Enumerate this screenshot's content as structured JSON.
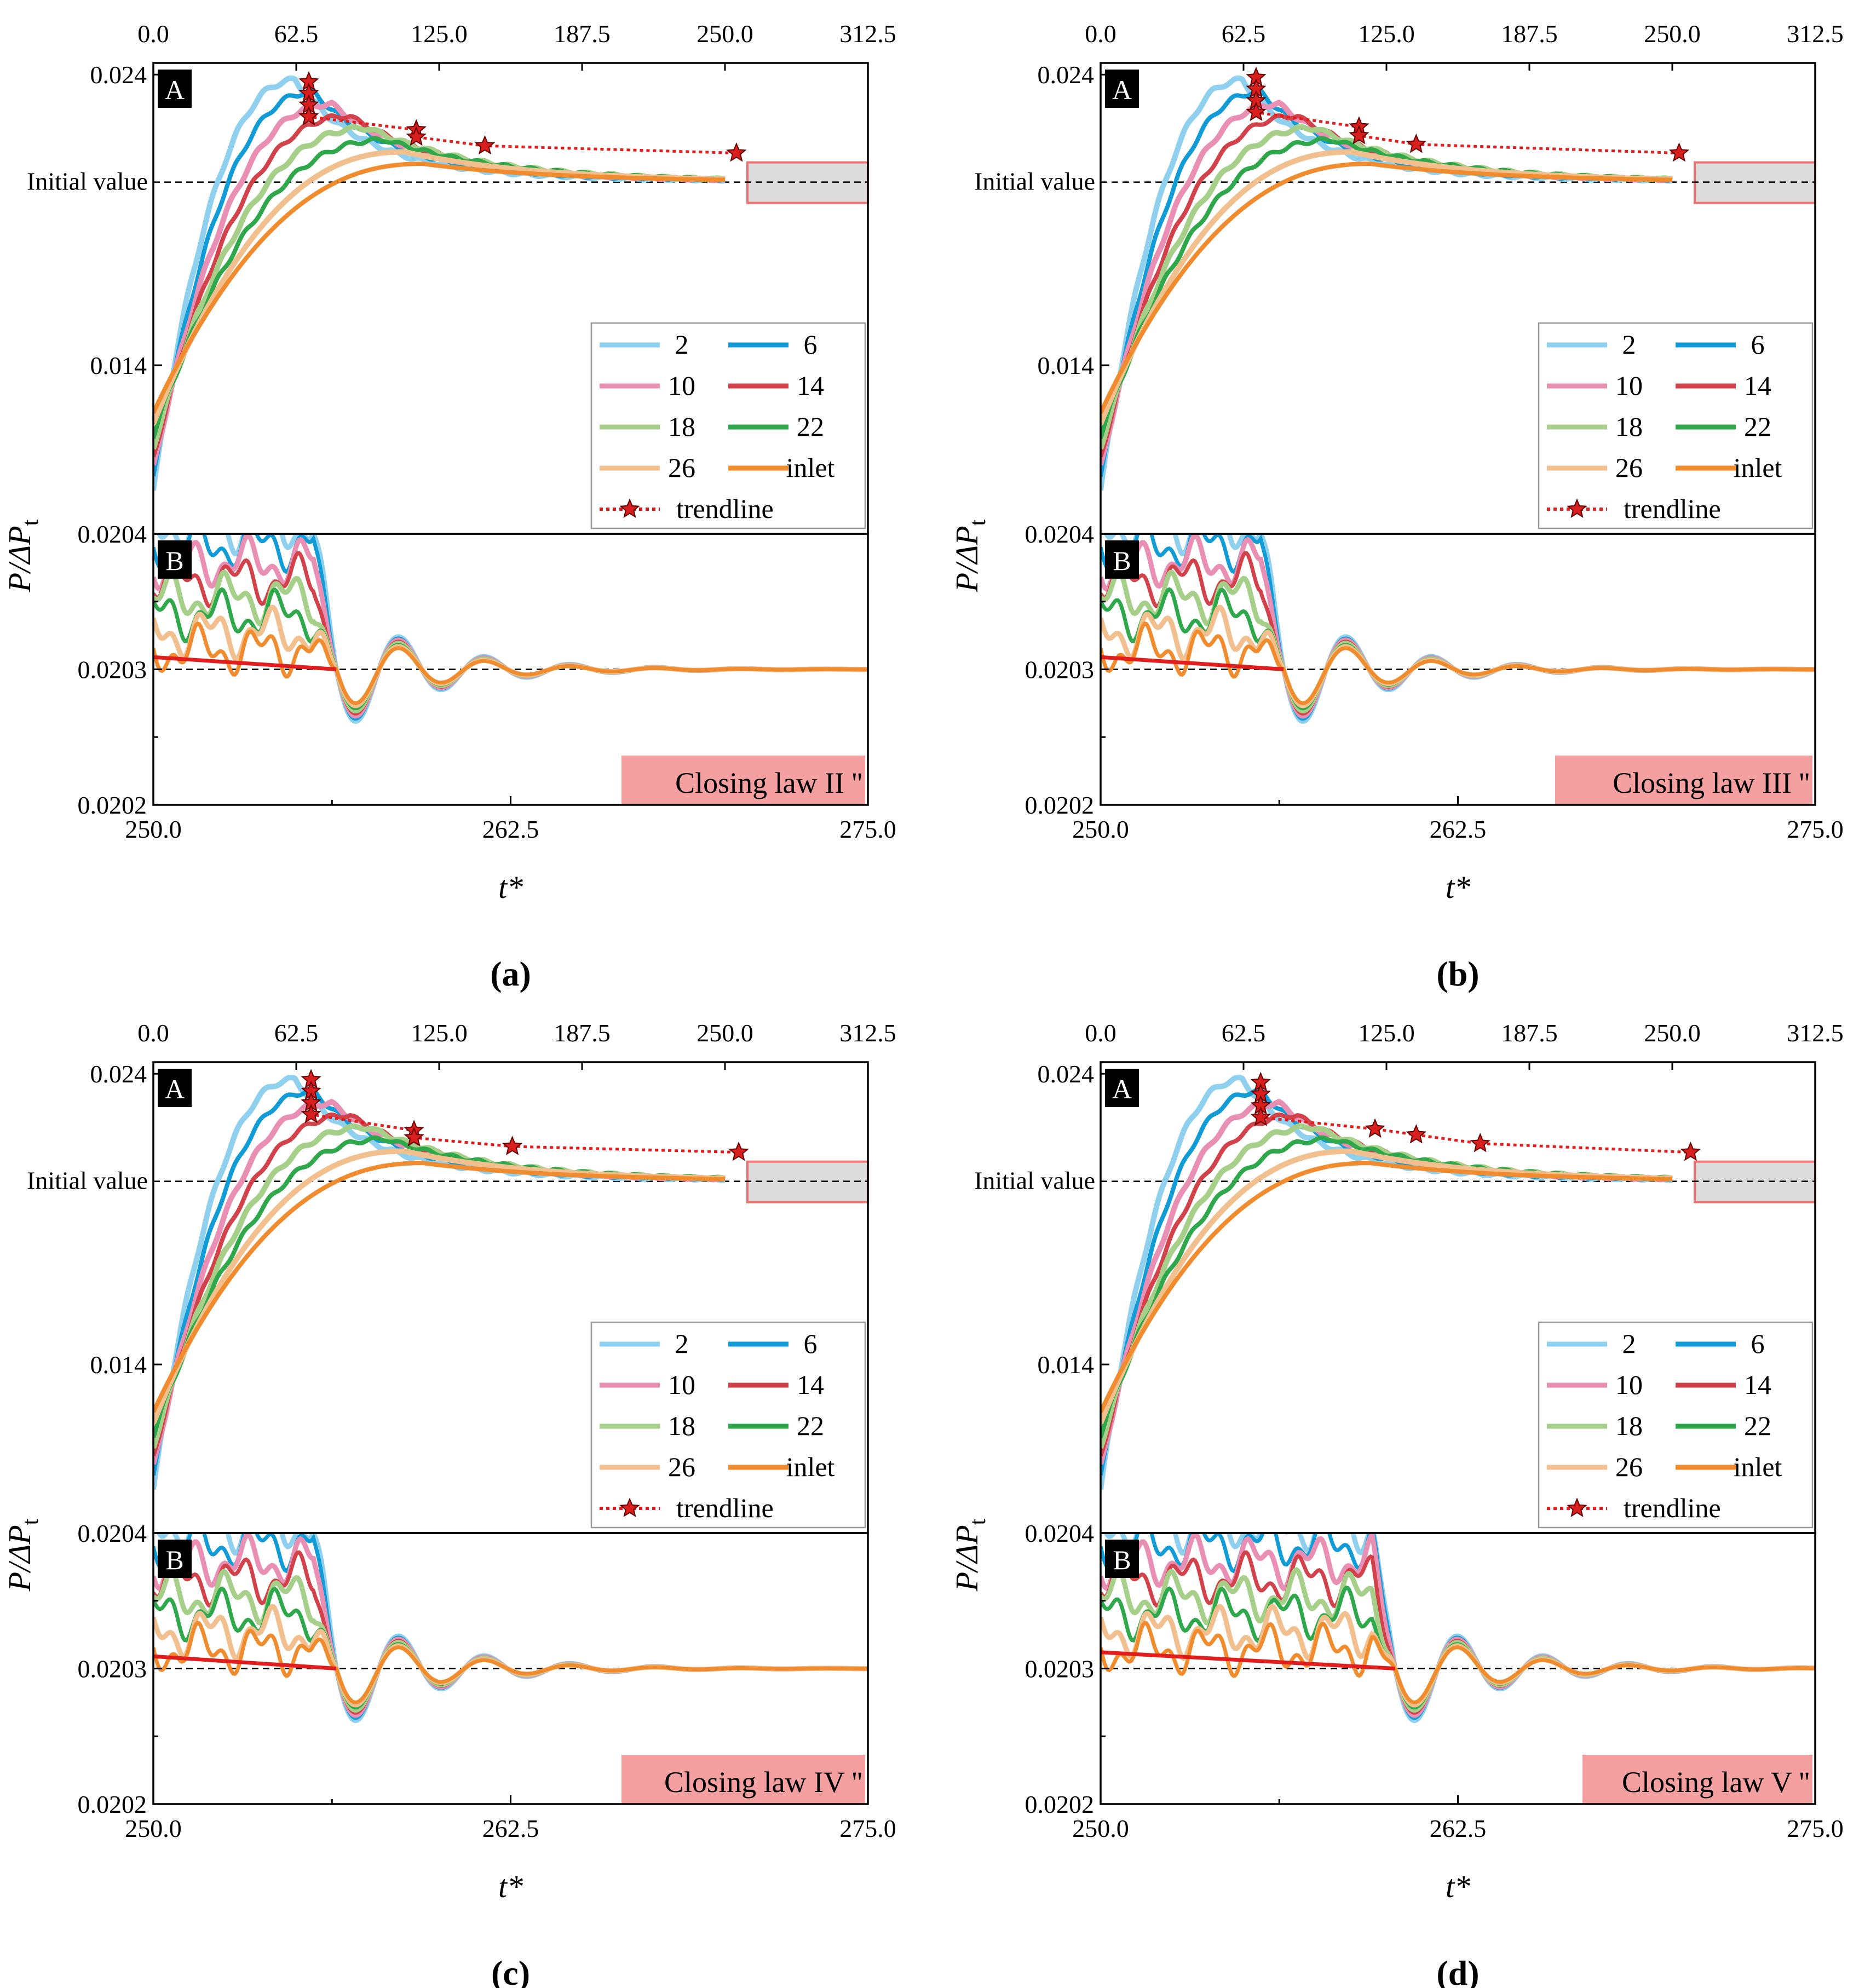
{
  "colors": {
    "s2": "#8fd0ef",
    "s6": "#129cd7",
    "s10": "#e98fb4",
    "s14": "#d2424b",
    "s18": "#a6d08a",
    "s22": "#2ea84a",
    "s26": "#f2c08e",
    "inlet": "#f08c2e",
    "trendline": "#e21d1d",
    "star_fill": "#d91e1e",
    "highlight_fill": "#f4a0a0",
    "box_fill": "#dcdcdc",
    "box_stroke": "#ee7070"
  },
  "legend": [
    {
      "label": "2",
      "key": "s2"
    },
    {
      "label": "6",
      "key": "s6"
    },
    {
      "label": "10",
      "key": "s10"
    },
    {
      "label": "14",
      "key": "s14"
    },
    {
      "label": "18",
      "key": "s18"
    },
    {
      "label": "22",
      "key": "s22"
    },
    {
      "label": "26",
      "key": "s26"
    },
    {
      "label": "inlet",
      "key": "inlet"
    },
    {
      "label": "trendline",
      "key": "trendline"
    }
  ],
  "chart_data": [
    {
      "type": "line",
      "panel_label": "(a)",
      "closing_law": "Closing law II ''",
      "ylabel_main": "P/ΔP",
      "ylabel_sub": "t",
      "xlabel": "t*",
      "initial_value_label": "Initial value",
      "subplot_A": {
        "label": "A",
        "x_ticks": [
          "0.0",
          "62.5",
          "125.0",
          "187.5",
          "250.0",
          "312.5"
        ],
        "xlim": [
          0,
          312.5
        ],
        "y_ticks": [
          "0.024",
          "0.014"
        ],
        "initial_value": 0.0203
      },
      "subplot_B": {
        "label": "B",
        "x_ticks": [
          "250.0",
          "262.5",
          "275.0"
        ],
        "xlim": [
          250,
          275
        ],
        "y_ticks": [
          "0.0204",
          "0.0203",
          "0.0202"
        ],
        "ylim": [
          0.0202,
          0.0204
        ]
      },
      "trendline_points_A": [
        [
          68,
          0.02375
        ],
        [
          68,
          0.02335
        ],
        [
          68,
          0.02295
        ],
        [
          68,
          0.02255
        ],
        [
          115,
          0.0221
        ],
        [
          115,
          0.02185
        ],
        [
          145,
          0.02155
        ],
        [
          255,
          0.0213
        ]
      ],
      "trendline_start_B": 0.020309
    },
    {
      "type": "line",
      "panel_label": "(b)",
      "closing_law": "Closing law III ''",
      "ylabel_main": "P/ΔP",
      "ylabel_sub": "t",
      "xlabel": "t*",
      "initial_value_label": "Initial value",
      "subplot_A": {
        "label": "A",
        "x_ticks": [
          "0.0",
          "62.5",
          "125.0",
          "187.5",
          "250.0",
          "312.5"
        ],
        "xlim": [
          0,
          312.5
        ],
        "y_ticks": [
          "0.024",
          "0.014"
        ],
        "initial_value": 0.0203
      },
      "subplot_B": {
        "label": "B",
        "x_ticks": [
          "250.0",
          "262.5",
          "275.0"
        ],
        "xlim": [
          250,
          275
        ],
        "y_ticks": [
          "0.0204",
          "0.0203",
          "0.0202"
        ],
        "ylim": [
          0.0202,
          0.0204
        ]
      },
      "trendline_points_A": [
        [
          68,
          0.0239
        ],
        [
          68,
          0.0235
        ],
        [
          68,
          0.0231
        ],
        [
          68,
          0.0227
        ],
        [
          113,
          0.0222
        ],
        [
          113,
          0.0219
        ],
        [
          138,
          0.0216
        ],
        [
          253,
          0.0213
        ]
      ],
      "trendline_start_B": 0.020309
    },
    {
      "type": "line",
      "panel_label": "(c)",
      "closing_law": "Closing law IV ''",
      "ylabel_main": "P/ΔP",
      "ylabel_sub": "t",
      "xlabel": "t*",
      "initial_value_label": "Initial value",
      "subplot_A": {
        "label": "A",
        "x_ticks": [
          "0.0",
          "62.5",
          "125.0",
          "187.5",
          "250.0",
          "312.5"
        ],
        "xlim": [
          0,
          312.5
        ],
        "y_ticks": [
          "0.024",
          "0.014"
        ],
        "initial_value": 0.0203
      },
      "subplot_B": {
        "label": "B",
        "x_ticks": [
          "250.0",
          "262.5",
          "275.0"
        ],
        "xlim": [
          250,
          275
        ],
        "y_ticks": [
          "0.0204",
          "0.0203",
          "0.0202"
        ],
        "ylim": [
          0.0202,
          0.0204
        ]
      },
      "trendline_points_A": [
        [
          69,
          0.0238
        ],
        [
          69,
          0.0234
        ],
        [
          69,
          0.023
        ],
        [
          69,
          0.0226
        ],
        [
          114,
          0.02205
        ],
        [
          114,
          0.0218
        ],
        [
          157,
          0.0215
        ],
        [
          256,
          0.0213
        ]
      ],
      "trendline_start_B": 0.020309
    },
    {
      "type": "line",
      "panel_label": "(d)",
      "closing_law": "Closing law V ''",
      "ylabel_main": "P/ΔP",
      "ylabel_sub": "t",
      "xlabel": "t*",
      "initial_value_label": "Initial value",
      "subplot_A": {
        "label": "A",
        "x_ticks": [
          "0.0",
          "62.5",
          "125.0",
          "187.5",
          "250.0",
          "312.5"
        ],
        "xlim": [
          0,
          312.5
        ],
        "y_ticks": [
          "0.024",
          "0.014"
        ],
        "initial_value": 0.0203
      },
      "subplot_B": {
        "label": "B",
        "x_ticks": [
          "250.0",
          "262.5",
          "275.0"
        ],
        "xlim": [
          250,
          275
        ],
        "y_ticks": [
          "0.0204",
          "0.0203",
          "0.0202"
        ],
        "ylim": [
          0.0202,
          0.0204
        ]
      },
      "trendline_points_A": [
        [
          70,
          0.0237
        ],
        [
          70,
          0.0233
        ],
        [
          70,
          0.0229
        ],
        [
          70,
          0.0225
        ],
        [
          120,
          0.0221
        ],
        [
          138,
          0.0219
        ],
        [
          166,
          0.0216
        ],
        [
          258,
          0.0213
        ]
      ],
      "trendline_start_B": 0.020312
    }
  ]
}
